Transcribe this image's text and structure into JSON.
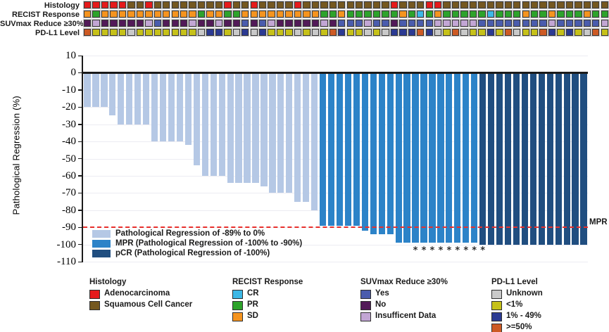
{
  "tracks": {
    "palette": {
      "A": "#e51a1b",
      "S": "#75581f",
      "CR": "#3cb8e6",
      "PR": "#2da32b",
      "SD": "#f5941f",
      "Y": "#4a5cad",
      "N": "#521a58",
      "I": "#c2a6d4",
      "U": "#c9c9c9",
      "L": "#c6c119",
      "M": "#2b3a92",
      "H": "#cd5a24"
    },
    "rows": [
      {
        "label": "Histology",
        "codes": [
          "A",
          "A",
          "A",
          "A",
          "A",
          "S",
          "S",
          "A",
          "S",
          "S",
          "S",
          "S",
          "S",
          "S",
          "S",
          "S",
          "A",
          "S",
          "S",
          "A",
          "S",
          "S",
          "S",
          "S",
          "A",
          "S",
          "S",
          "S",
          "S",
          "S",
          "S",
          "S",
          "S",
          "S",
          "S",
          "A",
          "S",
          "S",
          "S",
          "A",
          "A",
          "S",
          "S",
          "S",
          "S",
          "S",
          "S",
          "S",
          "S",
          "S",
          "S",
          "S",
          "S",
          "S",
          "S",
          "S",
          "S",
          "S",
          "S",
          "S"
        ]
      },
      {
        "label": "RECIST Response",
        "codes": [
          "SD",
          "PR",
          "SD",
          "SD",
          "SD",
          "SD",
          "SD",
          "SD",
          "SD",
          "SD",
          "SD",
          "SD",
          "SD",
          "PR",
          "SD",
          "SD",
          "PR",
          "PR",
          "SD",
          "SD",
          "SD",
          "SD",
          "SD",
          "SD",
          "SD",
          "SD",
          "SD",
          "PR",
          "PR",
          "SD",
          "PR",
          "PR",
          "PR",
          "PR",
          "PR",
          "PR",
          "SD",
          "PR",
          "CR",
          "PR",
          "SD",
          "PR",
          "PR",
          "PR",
          "PR",
          "PR",
          "CR",
          "PR",
          "PR",
          "PR",
          "SD",
          "PR",
          "PR",
          "SD",
          "PR",
          "PR",
          "PR",
          "SD",
          "PR",
          "PR"
        ]
      },
      {
        "label": "SUVmax Reduce ≥30%",
        "codes": [
          "N",
          "I",
          "N",
          "N",
          "N",
          "N",
          "N",
          "I",
          "Y",
          "N",
          "N",
          "N",
          "I",
          "N",
          "N",
          "I",
          "N",
          "N",
          "Y",
          "N",
          "Y",
          "I",
          "N",
          "N",
          "N",
          "N",
          "N",
          "I",
          "N",
          "Y",
          "Y",
          "Y",
          "I",
          "Y",
          "Y",
          "N",
          "Y",
          "Y",
          "Y",
          "Y",
          "I",
          "I",
          "I",
          "I",
          "I",
          "Y",
          "Y",
          "Y",
          "Y",
          "Y",
          "Y",
          "Y",
          "Y",
          "I",
          "Y",
          "Y",
          "Y",
          "Y",
          "Y",
          "I"
        ]
      },
      {
        "label": "PD-L1 Level",
        "codes": [
          "H",
          "L",
          "L",
          "L",
          "L",
          "U",
          "L",
          "L",
          "L",
          "L",
          "L",
          "L",
          "L",
          "U",
          "M",
          "M",
          "L",
          "U",
          "M",
          "U",
          "M",
          "L",
          "L",
          "L",
          "U",
          "L",
          "U",
          "L",
          "H",
          "M",
          "L",
          "L",
          "U",
          "L",
          "U",
          "M",
          "M",
          "M",
          "H",
          "M",
          "U",
          "L",
          "H",
          "U",
          "L",
          "L",
          "M",
          "L",
          "H",
          "U",
          "L",
          "L",
          "H",
          "M",
          "L",
          "M",
          "L",
          "U",
          "H",
          "L"
        ]
      }
    ]
  },
  "chart_data": {
    "type": "bar",
    "title": "",
    "xlabel": "",
    "ylabel": "Pathological Regression (%)",
    "ylim": [
      -110,
      10
    ],
    "yticks": [
      10,
      0,
      -10,
      -20,
      -30,
      -40,
      -50,
      -60,
      -70,
      -80,
      -90,
      -100,
      -110
    ],
    "grid": true,
    "n_patients": 60,
    "values": [
      -20,
      -20,
      -20,
      -25,
      -30,
      -30,
      -30,
      -30,
      -40,
      -40,
      -40,
      -40,
      -42,
      -54,
      -60,
      -60,
      -60,
      -64,
      -64,
      -64,
      -64,
      -66,
      -70,
      -70,
      -70,
      -75,
      -75,
      -80,
      -89,
      -89,
      -89,
      -89,
      -89,
      -92,
      -94,
      -94,
      -94,
      -99,
      -99,
      -99,
      -99,
      -99,
      -99,
      -99,
      -99,
      -99,
      -99,
      -100,
      -100,
      -100,
      -100,
      -100,
      -100,
      -100,
      -100,
      -100,
      -100,
      -100,
      -100,
      -100
    ],
    "bar_groups": {
      "light": {
        "label": "Pathological Regression of -89% to 0%",
        "color": "#b5c8e5"
      },
      "mpr": {
        "label": "MPR (Pathological Regression of -100% to -90%)",
        "color": "#2c83c8"
      },
      "pcr": {
        "label": "pCR (Pathological Regression of -100%)",
        "color": "#204e80"
      }
    },
    "threshold_line": {
      "value": -90,
      "label": "MPR",
      "color": "#e8302c",
      "style": "dashed"
    },
    "asterisk_columns": [
      40,
      41,
      42,
      43,
      44,
      45,
      46,
      47,
      48
    ],
    "legend_position": "inside-bottom-left"
  },
  "legend_groups": [
    {
      "title": "Histology",
      "items": [
        {
          "label": "Adenocarcinoma",
          "color": "#e51a1b"
        },
        {
          "label": "Squamous Cell Cancer",
          "color": "#75581f"
        }
      ]
    },
    {
      "title": "RECIST Response",
      "items": [
        {
          "label": "CR",
          "color": "#3cb8e6"
        },
        {
          "label": "PR",
          "color": "#2da32b"
        },
        {
          "label": "SD",
          "color": "#f5941f"
        }
      ]
    },
    {
      "title": "SUVmax Reduce ≥30%",
      "items": [
        {
          "label": "Yes",
          "color": "#4a5cad"
        },
        {
          "label": "No",
          "color": "#521a58"
        },
        {
          "label": "Insufficent Data",
          "color": "#c2a6d4"
        }
      ]
    },
    {
      "title": "PD-L1 Level",
      "items": [
        {
          "label": "Unknown",
          "color": "#c9c9c9"
        },
        {
          "label": "<1%",
          "color": "#c6c119"
        },
        {
          "label": "1% - 49%",
          "color": "#2b3a92"
        },
        {
          "label": ">=50%",
          "color": "#cd5a24"
        }
      ]
    }
  ]
}
